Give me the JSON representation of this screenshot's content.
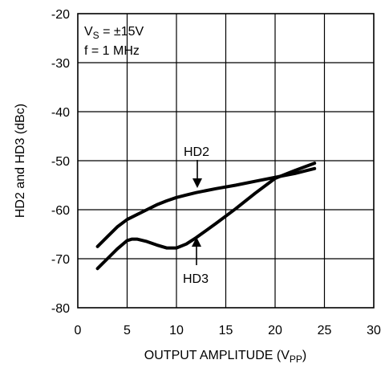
{
  "chart_data": {
    "type": "line",
    "xlabel_main": "OUTPUT AMPLITUDE (V",
    "xlabel_sub": "PP",
    "xlabel_end": ")",
    "ylabel": "HD2 and HD3 (dBc)",
    "xlim": [
      0,
      30
    ],
    "ylim": [
      -80,
      -20
    ],
    "x_ticks": [
      0,
      5,
      10,
      15,
      20,
      25,
      30
    ],
    "y_ticks": [
      -80,
      -70,
      -60,
      -50,
      -40,
      -30,
      -20
    ],
    "x_tick_labels": [
      "0",
      "5",
      "10",
      "15",
      "20",
      "25",
      "30"
    ],
    "y_tick_labels": [
      "-80",
      "-70",
      "-60",
      "-50",
      "-40",
      "-30",
      "-20"
    ],
    "grid": true,
    "annotation_vs_main": "V",
    "annotation_vs_sub": "S",
    "annotation_vs_end": " = ±15V",
    "annotation_freq": "f = 1 MHz",
    "series": [
      {
        "name": "HD2",
        "x": [
          2,
          3,
          4,
          5,
          6,
          7,
          8,
          9,
          10,
          11,
          12,
          14,
          16,
          18,
          20,
          22,
          24
        ],
        "y": [
          -67.5,
          -65.5,
          -63.5,
          -62,
          -61,
          -60,
          -59,
          -58.2,
          -57.5,
          -57,
          -56.5,
          -55.7,
          -55,
          -54.2,
          -53.4,
          -52.6,
          -51.6
        ]
      },
      {
        "name": "HD3",
        "x": [
          2,
          3,
          4,
          5,
          5.5,
          6,
          7,
          8,
          9,
          10,
          11,
          12,
          14,
          16,
          18,
          20,
          22,
          24
        ],
        "y": [
          -72,
          -70,
          -68,
          -66.3,
          -66,
          -66,
          -66.5,
          -67.2,
          -67.8,
          -67.8,
          -67,
          -65.7,
          -62.8,
          -59.8,
          -56.6,
          -53.6,
          -52,
          -50.5
        ]
      }
    ],
    "arrow_hd2_label": "HD2",
    "arrow_hd3_label": "HD3"
  }
}
